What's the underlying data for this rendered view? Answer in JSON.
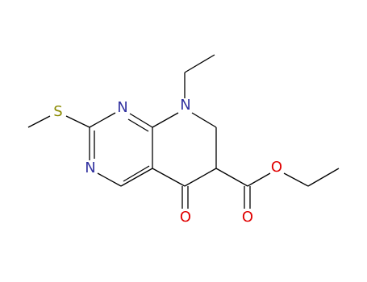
{
  "atoms": [
    {
      "label": "S"
    },
    {
      "label": "N"
    },
    {
      "label": "N"
    },
    {
      "label": "N"
    },
    {
      "label": "O"
    },
    {
      "label": "O"
    },
    {
      "label": "O"
    }
  ]
}
